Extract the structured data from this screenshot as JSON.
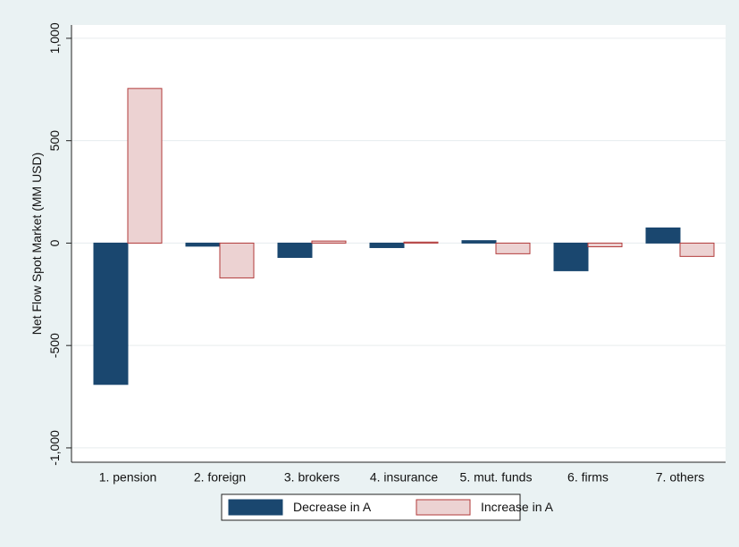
{
  "chart_data": {
    "type": "bar",
    "ylabel": "Net Flow Spot Market (MM USD)",
    "categories": [
      "1. pension",
      "2. foreign",
      "3. brokers",
      "4. insurance",
      "5. mut. funds",
      "6. firms",
      "7. others"
    ],
    "series": [
      {
        "name": "Decrease in A",
        "color": "#1a476f",
        "edgecolor": "#1a476f",
        "values": [
          -690,
          -15,
          -70,
          -22,
          12,
          -135,
          74
        ]
      },
      {
        "name": "Increase in A",
        "color": "#ecd2d2",
        "edgecolor": "#b23a3a",
        "values": [
          755,
          -170,
          10,
          5,
          -52,
          -18,
          -65
        ]
      }
    ],
    "ylim": [
      -1070,
      1065
    ],
    "yticks": [
      {
        "value": -1000,
        "label": "-1,000"
      },
      -500,
      0,
      500,
      {
        "value": 1000,
        "label": "1,000"
      }
    ],
    "grid": true,
    "legend": "bottom"
  }
}
